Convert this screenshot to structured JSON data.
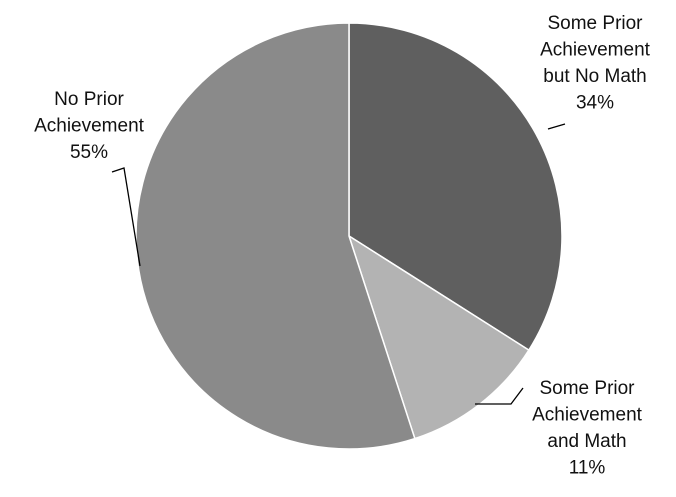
{
  "chart_data": {
    "type": "pie",
    "title": "",
    "categories": [
      "Some Prior Achievement but No Math",
      "Some Prior Achievement and Math",
      "No Prior Achievement"
    ],
    "values": [
      34,
      11,
      55
    ],
    "unit": "%",
    "labels": [
      {
        "lines": [
          "Some Prior",
          "Achievement",
          "but No  Math"
        ],
        "percent": "34%"
      },
      {
        "lines": [
          "Some Prior",
          "Achievement",
          "and Math"
        ],
        "percent": "11%"
      },
      {
        "lines": [
          "No Prior",
          "Achievement"
        ],
        "percent": "55%"
      }
    ],
    "colors": [
      "#5f5f5f",
      "#b3b3b3",
      "#8a8a8a"
    ],
    "start_angle_deg": 0,
    "direction": "clockwise",
    "legend": "none"
  }
}
